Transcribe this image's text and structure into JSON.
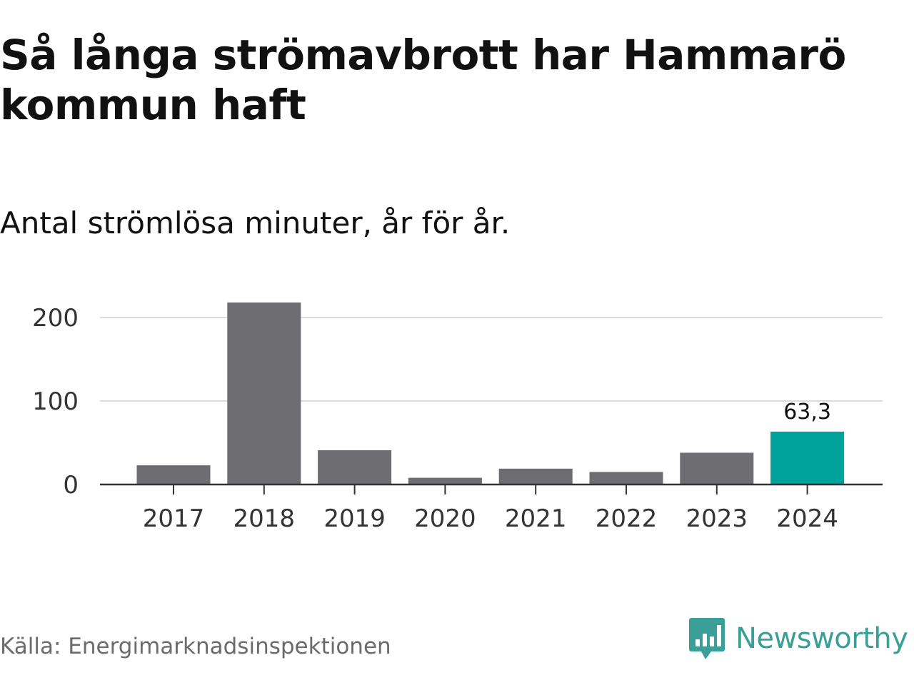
{
  "header": {
    "title": "Så långa strömavbrott har Hammarö kommun haft",
    "subtitle": "Antal strömlösa minuter, år för år."
  },
  "footer": {
    "source": "Källa: Energimarknadsinspektionen",
    "brand": "Newsworthy",
    "brand_icon": "newsworthy-chart-bubble-icon"
  },
  "colors": {
    "bar": "#6e6d72",
    "highlight": "#00a39b",
    "brand": "#3a9f97",
    "grid": "#dcdcdc",
    "axis": "#333333",
    "text": "#111111",
    "muted": "#6b6b6f"
  },
  "chart_data": {
    "type": "bar",
    "title": "Så långa strömavbrott har Hammarö kommun haft",
    "subtitle": "Antal strömlösa minuter, år för år.",
    "xlabel": "",
    "ylabel": "",
    "categories": [
      "2017",
      "2018",
      "2019",
      "2020",
      "2021",
      "2022",
      "2023",
      "2024"
    ],
    "values": [
      23,
      218,
      41,
      8,
      19,
      15,
      38,
      63.3
    ],
    "highlight_index": 7,
    "data_labels": [
      {
        "index": 7,
        "text": "63,3"
      }
    ],
    "ylim": [
      0,
      225
    ],
    "yticks": [
      0,
      100,
      200
    ],
    "ytick_labels": [
      "0",
      "100",
      "200"
    ],
    "grid": true,
    "legend": "none"
  }
}
